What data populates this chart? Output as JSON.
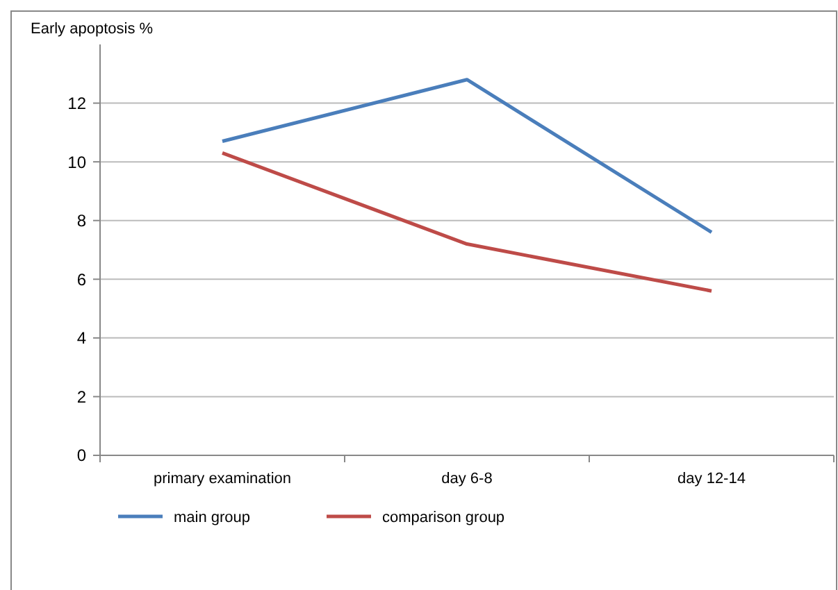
{
  "chart_data": {
    "type": "line",
    "ylabel": "Early apoptosis %",
    "categories": [
      "primary examination",
      "day 6-8",
      "day 12-14"
    ],
    "series": [
      {
        "name": "main group",
        "color": "#4a7ebb",
        "values": [
          10.7,
          12.8,
          7.6
        ]
      },
      {
        "name": "comparison group",
        "color": "#be4b48",
        "values": [
          10.3,
          7.2,
          5.6
        ]
      }
    ],
    "ylim": [
      0,
      14
    ],
    "yticks": [
      0,
      2,
      4,
      6,
      8,
      10,
      12
    ],
    "grid": "y",
    "legend": "bottom left",
    "marker": "none",
    "line_style": "solid"
  }
}
